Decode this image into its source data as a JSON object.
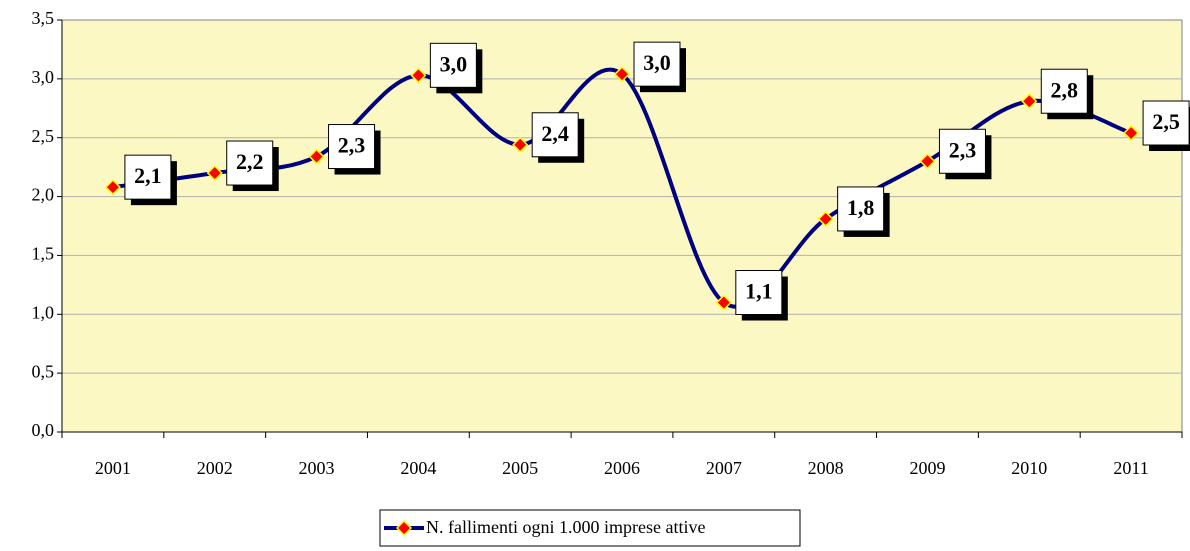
{
  "chart_data": {
    "type": "line",
    "categories": [
      "2001",
      "2002",
      "2003",
      "2004",
      "2005",
      "2006",
      "2007",
      "2008",
      "2009",
      "2010",
      "2011"
    ],
    "series": [
      {
        "name": "N. fallimenti ogni 1.000 imprese attive",
        "color": "#000080",
        "marker_color": "#ff0000",
        "values": [
          2.08,
          2.2,
          2.34,
          3.03,
          2.44,
          3.04,
          1.1,
          1.81,
          2.3,
          2.81,
          2.54
        ],
        "value_labels": [
          "2,1",
          "2,2",
          "2,3",
          "3,0",
          "2,4",
          "3,0",
          "1,1",
          "1,8",
          "2,3",
          "2,8",
          "2,5"
        ]
      }
    ],
    "ylim": [
      0,
      3.5
    ],
    "yticks": [
      {
        "value": 0,
        "label": "0,0"
      },
      {
        "value": 0.5,
        "label": "0,5"
      },
      {
        "value": 1,
        "label": "1,0"
      },
      {
        "value": 1.5,
        "label": "1,5"
      },
      {
        "value": 2,
        "label": "2,0"
      },
      {
        "value": 2.5,
        "label": "2,5"
      },
      {
        "value": 3,
        "label": "3,0"
      },
      {
        "value": 3.5,
        "label": "3,5"
      }
    ],
    "grid": true,
    "smooth": true,
    "legend": "bottom",
    "plot_background": "#fcf8c4"
  }
}
